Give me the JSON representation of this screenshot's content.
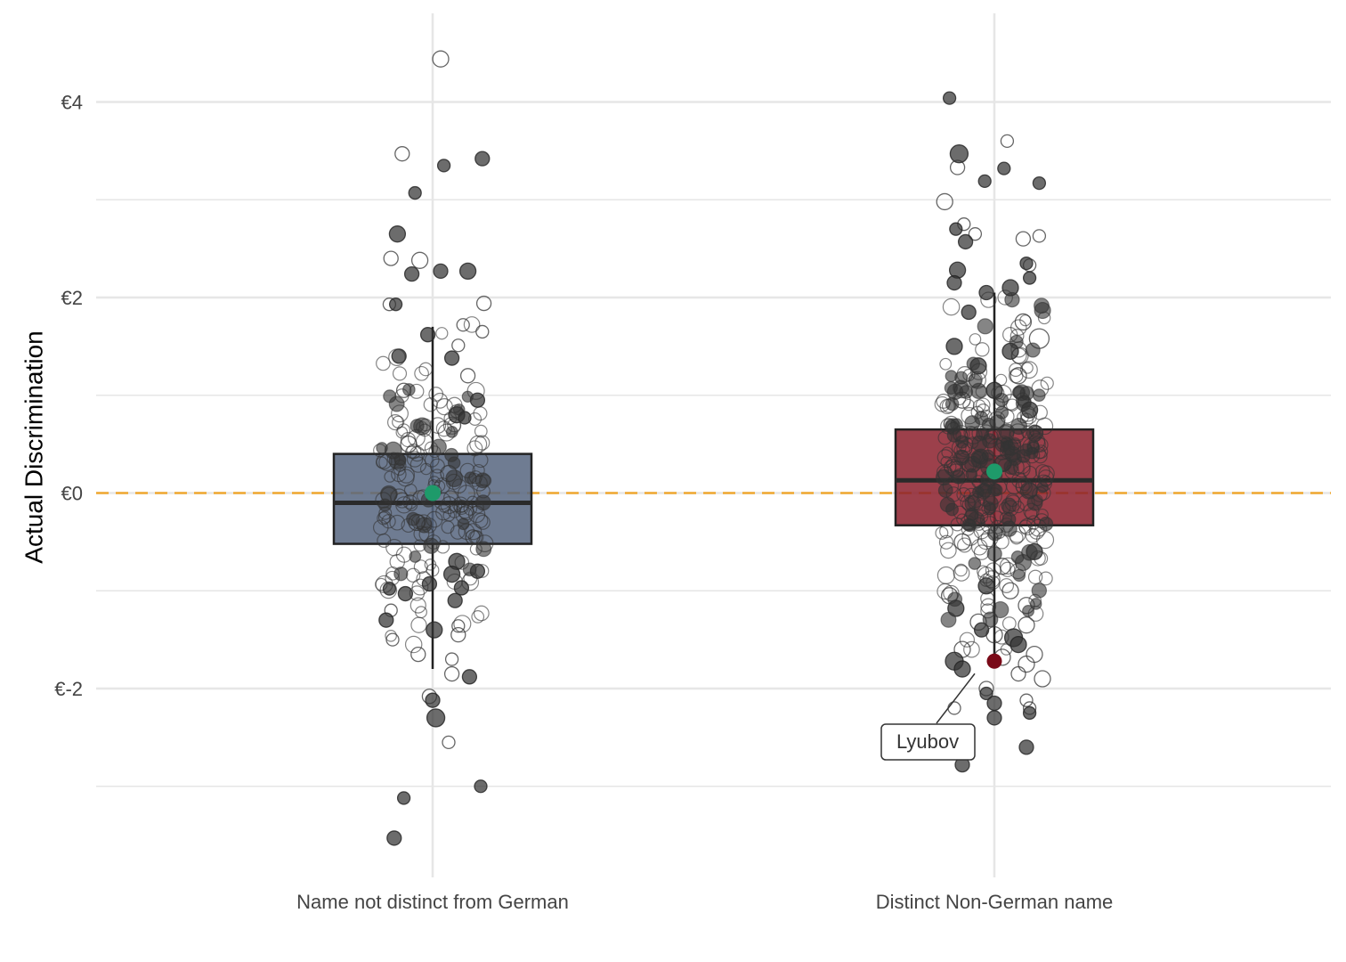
{
  "chart_data": {
    "type": "box-jitter",
    "ylabel": "Actual Discrimination",
    "xlabel": "",
    "ylim": [
      -3.9,
      4.9
    ],
    "y_ticks": [
      {
        "value": 4,
        "label": "€4"
      },
      {
        "value": 2,
        "label": "€2"
      },
      {
        "value": 0,
        "label": "€0"
      },
      {
        "value": -2,
        "label": "€-2"
      }
    ],
    "y_minor_ticks": [
      3,
      1,
      -1,
      -3
    ],
    "grid": true,
    "reference_line": {
      "y": 0,
      "style": "dashed",
      "color": "#f0a830"
    },
    "categories": [
      "Name not distinct from German",
      "Distinct Non-German name"
    ],
    "groups": [
      {
        "category": "Name not distinct from German",
        "fill": "#56657f",
        "q1": -0.52,
        "median": -0.1,
        "q3": 0.4,
        "whisker_low": -1.8,
        "whisker_high": 1.7,
        "mean": 0.0,
        "points": [
          {
            "y": 4.44,
            "dx": 0.05,
            "filled": false,
            "r": 9
          },
          {
            "y": 3.47,
            "dx": -0.19,
            "filled": false,
            "r": 8
          },
          {
            "y": 3.42,
            "dx": 0.31,
            "filled": true,
            "r": 8
          },
          {
            "y": 3.35,
            "dx": 0.07,
            "filled": true,
            "r": 7
          },
          {
            "y": 3.07,
            "dx": -0.11,
            "filled": true,
            "r": 7
          },
          {
            "y": 2.65,
            "dx": -0.22,
            "filled": true,
            "r": 9
          },
          {
            "y": 2.4,
            "dx": -0.26,
            "filled": false,
            "r": 8
          },
          {
            "y": 2.38,
            "dx": -0.08,
            "filled": false,
            "r": 9
          },
          {
            "y": 2.27,
            "dx": 0.05,
            "filled": true,
            "r": 8
          },
          {
            "y": 2.27,
            "dx": 0.22,
            "filled": true,
            "r": 9
          },
          {
            "y": 2.24,
            "dx": -0.13,
            "filled": true,
            "r": 8
          },
          {
            "y": 1.94,
            "dx": 0.32,
            "filled": false,
            "r": 8
          },
          {
            "y": 1.93,
            "dx": -0.27,
            "filled": false,
            "r": 7
          },
          {
            "y": 1.93,
            "dx": -0.23,
            "filled": true,
            "r": 7
          },
          {
            "y": 1.72,
            "dx": 0.19,
            "filled": false,
            "r": 7
          },
          {
            "y": 1.65,
            "dx": 0.31,
            "filled": false,
            "r": 7
          },
          {
            "y": 1.62,
            "dx": -0.03,
            "filled": true,
            "r": 8
          },
          {
            "y": 1.51,
            "dx": 0.16,
            "filled": false,
            "r": 7
          },
          {
            "y": 1.4,
            "dx": -0.21,
            "filled": true,
            "r": 8
          },
          {
            "y": 1.38,
            "dx": 0.12,
            "filled": true,
            "r": 8
          },
          {
            "y": 1.2,
            "dx": 0.22,
            "filled": false,
            "r": 8
          },
          {
            "y": 1.05,
            "dx": -0.18,
            "filled": false,
            "r": 8
          },
          {
            "y": 0.95,
            "dx": 0.28,
            "filled": true,
            "r": 8
          },
          {
            "y": 0.8,
            "dx": 0.15,
            "filled": true,
            "r": 9
          },
          {
            "y": 0.77,
            "dx": 0.2,
            "filled": true,
            "r": 7
          },
          {
            "y": 0.5,
            "dx": -0.15,
            "filled": false,
            "r": 9
          },
          {
            "y": 0.2,
            "dx": 0.1,
            "filled": false,
            "r": 9
          },
          {
            "y": -0.3,
            "dx": -0.1,
            "filled": false,
            "r": 9
          },
          {
            "y": -0.45,
            "dx": 0.25,
            "filled": false,
            "r": 8
          },
          {
            "y": -0.7,
            "dx": 0.15,
            "filled": true,
            "r": 9
          },
          {
            "y": -0.8,
            "dx": 0.28,
            "filled": true,
            "r": 8
          },
          {
            "y": -0.83,
            "dx": 0.12,
            "filled": true,
            "r": 9
          },
          {
            "y": -0.93,
            "dx": -0.02,
            "filled": true,
            "r": 8
          },
          {
            "y": -0.97,
            "dx": 0.18,
            "filled": true,
            "r": 8
          },
          {
            "y": -0.98,
            "dx": -0.27,
            "filled": true,
            "r": 7
          },
          {
            "y": -1.03,
            "dx": -0.17,
            "filled": true,
            "r": 8
          },
          {
            "y": -1.1,
            "dx": 0.14,
            "filled": true,
            "r": 8
          },
          {
            "y": -1.2,
            "dx": -0.26,
            "filled": false,
            "r": 7
          },
          {
            "y": -1.3,
            "dx": -0.29,
            "filled": true,
            "r": 8
          },
          {
            "y": -1.36,
            "dx": 0.16,
            "filled": false,
            "r": 7
          },
          {
            "y": -1.4,
            "dx": 0.01,
            "filled": true,
            "r": 9
          },
          {
            "y": -1.45,
            "dx": 0.16,
            "filled": false,
            "r": 8
          },
          {
            "y": -1.5,
            "dx": -0.25,
            "filled": false,
            "r": 7
          },
          {
            "y": -1.65,
            "dx": -0.09,
            "filled": false,
            "r": 8
          },
          {
            "y": -1.7,
            "dx": 0.12,
            "filled": false,
            "r": 7
          },
          {
            "y": -1.85,
            "dx": 0.12,
            "filled": false,
            "r": 8
          },
          {
            "y": -1.88,
            "dx": 0.23,
            "filled": true,
            "r": 8
          },
          {
            "y": -2.08,
            "dx": -0.02,
            "filled": false,
            "r": 8
          },
          {
            "y": -2.12,
            "dx": 0.0,
            "filled": true,
            "r": 8
          },
          {
            "y": -2.3,
            "dx": 0.02,
            "filled": true,
            "r": 10
          },
          {
            "y": -2.55,
            "dx": 0.1,
            "filled": false,
            "r": 7
          },
          {
            "y": -3.0,
            "dx": 0.3,
            "filled": true,
            "r": 7
          },
          {
            "y": -3.12,
            "dx": -0.18,
            "filled": true,
            "r": 7
          },
          {
            "y": -3.53,
            "dx": -0.24,
            "filled": true,
            "r": 8
          }
        ]
      },
      {
        "category": "Distinct Non-German name",
        "fill": "#8b1e2b",
        "q1": -0.33,
        "median": 0.13,
        "q3": 0.65,
        "whisker_low": -1.75,
        "whisker_high": 2.05,
        "mean": 0.22,
        "points": [
          {
            "y": 4.04,
            "dx": -0.28,
            "filled": true,
            "r": 7
          },
          {
            "y": 3.6,
            "dx": 0.08,
            "filled": false,
            "r": 7
          },
          {
            "y": 3.47,
            "dx": -0.22,
            "filled": true,
            "r": 10
          },
          {
            "y": 3.33,
            "dx": -0.23,
            "filled": false,
            "r": 8
          },
          {
            "y": 3.32,
            "dx": 0.06,
            "filled": true,
            "r": 7
          },
          {
            "y": 3.19,
            "dx": -0.06,
            "filled": true,
            "r": 7
          },
          {
            "y": 3.17,
            "dx": 0.28,
            "filled": true,
            "r": 7
          },
          {
            "y": 2.98,
            "dx": -0.31,
            "filled": false,
            "r": 9
          },
          {
            "y": 2.75,
            "dx": -0.19,
            "filled": false,
            "r": 7
          },
          {
            "y": 2.7,
            "dx": -0.24,
            "filled": true,
            "r": 7
          },
          {
            "y": 2.65,
            "dx": -0.12,
            "filled": false,
            "r": 7
          },
          {
            "y": 2.63,
            "dx": 0.28,
            "filled": false,
            "r": 7
          },
          {
            "y": 2.6,
            "dx": 0.18,
            "filled": false,
            "r": 8
          },
          {
            "y": 2.57,
            "dx": -0.18,
            "filled": true,
            "r": 8
          },
          {
            "y": 2.35,
            "dx": 0.2,
            "filled": true,
            "r": 7
          },
          {
            "y": 2.33,
            "dx": 0.22,
            "filled": false,
            "r": 7
          },
          {
            "y": 2.28,
            "dx": -0.23,
            "filled": true,
            "r": 9
          },
          {
            "y": 2.2,
            "dx": 0.22,
            "filled": true,
            "r": 7
          },
          {
            "y": 2.15,
            "dx": -0.25,
            "filled": true,
            "r": 8
          },
          {
            "y": 2.1,
            "dx": 0.1,
            "filled": true,
            "r": 9
          },
          {
            "y": 2.05,
            "dx": -0.05,
            "filled": true,
            "r": 8
          },
          {
            "y": 1.85,
            "dx": -0.16,
            "filled": true,
            "r": 8
          },
          {
            "y": 1.75,
            "dx": 0.18,
            "filled": false,
            "r": 9
          },
          {
            "y": 1.58,
            "dx": 0.28,
            "filled": false,
            "r": 11
          },
          {
            "y": 1.5,
            "dx": -0.25,
            "filled": true,
            "r": 9
          },
          {
            "y": 1.45,
            "dx": 0.1,
            "filled": true,
            "r": 9
          },
          {
            "y": 1.3,
            "dx": -0.1,
            "filled": true,
            "r": 9
          },
          {
            "y": 1.2,
            "dx": 0.15,
            "filled": false,
            "r": 9
          },
          {
            "y": 1.05,
            "dx": 0.0,
            "filled": true,
            "r": 9
          },
          {
            "y": 0.95,
            "dx": -0.2,
            "filled": false,
            "r": 9
          },
          {
            "y": 0.85,
            "dx": 0.22,
            "filled": true,
            "r": 9
          },
          {
            "y": 0.3,
            "dx": 0.05,
            "filled": false,
            "r": 9
          },
          {
            "y": -0.5,
            "dx": -0.2,
            "filled": false,
            "r": 9
          },
          {
            "y": -0.6,
            "dx": 0.25,
            "filled": true,
            "r": 9
          },
          {
            "y": -0.75,
            "dx": 0.05,
            "filled": false,
            "r": 9
          },
          {
            "y": -0.95,
            "dx": -0.05,
            "filled": true,
            "r": 9
          },
          {
            "y": -1.0,
            "dx": 0.1,
            "filled": false,
            "r": 9
          },
          {
            "y": -1.05,
            "dx": -0.28,
            "filled": false,
            "r": 9
          },
          {
            "y": -1.15,
            "dx": 0.2,
            "filled": false,
            "r": 9
          },
          {
            "y": -1.18,
            "dx": -0.24,
            "filled": true,
            "r": 9
          },
          {
            "y": -1.32,
            "dx": -0.1,
            "filled": false,
            "r": 9
          },
          {
            "y": -1.35,
            "dx": 0.2,
            "filled": false,
            "r": 9
          },
          {
            "y": -1.4,
            "dx": -0.08,
            "filled": true,
            "r": 8
          },
          {
            "y": -1.45,
            "dx": 0.0,
            "filled": false,
            "r": 9
          },
          {
            "y": -1.48,
            "dx": 0.12,
            "filled": true,
            "r": 10
          },
          {
            "y": -1.55,
            "dx": 0.15,
            "filled": true,
            "r": 9
          },
          {
            "y": -1.6,
            "dx": -0.2,
            "filled": false,
            "r": 9
          },
          {
            "y": -1.65,
            "dx": 0.25,
            "filled": false,
            "r": 9
          },
          {
            "y": -1.68,
            "dx": 0.05,
            "filled": false,
            "r": 9
          },
          {
            "y": -1.72,
            "dx": -0.25,
            "filled": true,
            "r": 10
          },
          {
            "y": -1.75,
            "dx": 0.2,
            "filled": false,
            "r": 9
          },
          {
            "y": -1.8,
            "dx": -0.2,
            "filled": true,
            "r": 9
          },
          {
            "y": -1.85,
            "dx": 0.15,
            "filled": false,
            "r": 8
          },
          {
            "y": -1.9,
            "dx": 0.3,
            "filled": false,
            "r": 9
          },
          {
            "y": -2.0,
            "dx": -0.05,
            "filled": false,
            "r": 8
          },
          {
            "y": -2.05,
            "dx": -0.05,
            "filled": true,
            "r": 7
          },
          {
            "y": -2.12,
            "dx": 0.2,
            "filled": false,
            "r": 7
          },
          {
            "y": -2.15,
            "dx": 0.0,
            "filled": true,
            "r": 8
          },
          {
            "y": -2.2,
            "dx": -0.25,
            "filled": false,
            "r": 7
          },
          {
            "y": -2.2,
            "dx": 0.22,
            "filled": false,
            "r": 7
          },
          {
            "y": -2.25,
            "dx": 0.22,
            "filled": true,
            "r": 7
          },
          {
            "y": -2.3,
            "dx": 0.0,
            "filled": true,
            "r": 8
          },
          {
            "y": -2.5,
            "dx": -0.2,
            "filled": false,
            "r": 7
          },
          {
            "y": -2.6,
            "dx": 0.2,
            "filled": true,
            "r": 8
          },
          {
            "y": -2.78,
            "dx": -0.2,
            "filled": true,
            "r": 8
          }
        ],
        "highlight": {
          "label": "Lyubov",
          "y": -1.72,
          "dx": 0.0,
          "color": "#7a0a18"
        }
      }
    ],
    "colors": {
      "mean_point": "#1e9a6a",
      "reference_line": "#f0a830",
      "grid": "#e6e6e6",
      "point_fill": "#333333",
      "whisker": "#222222"
    }
  }
}
